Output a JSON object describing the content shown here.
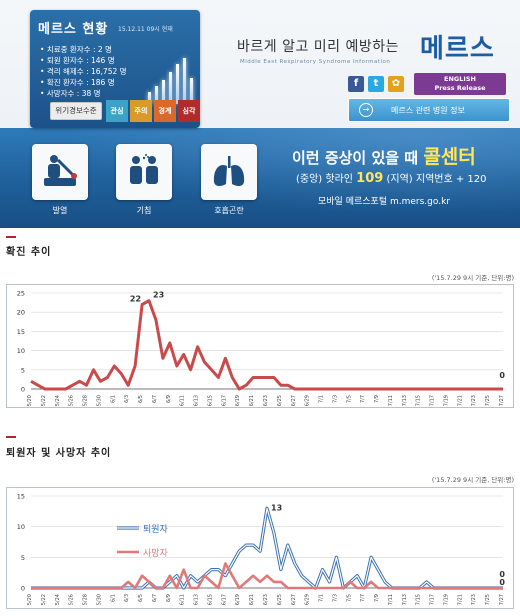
{
  "banner": {
    "status": {
      "title": "메르스 현황",
      "date": "15.12.11 09시 현재",
      "items": [
        "치료중 환자수 : 2 명",
        "퇴원 환자수 : 146 명",
        "격리 해제수 : 16,752 명",
        "확진 환자수 : 186 명",
        "사망자수 : 38 명"
      ]
    },
    "alert": {
      "label": "위기경보수준",
      "levels": [
        {
          "label": "관심",
          "color": "#3aa4c8"
        },
        {
          "label": "주의",
          "color": "#d99a2b"
        },
        {
          "label": "경계",
          "color": "#d96a2b"
        },
        {
          "label": "심각",
          "color": "#b02c2c"
        }
      ]
    },
    "slogan": "바르게 알고 미리 예방하는",
    "slogan_en": "Middle East Respiratory Syndrome Information",
    "logo": "메르스",
    "sns": [
      {
        "icon": "facebook-icon",
        "glyph": "f",
        "color": "#3b5998"
      },
      {
        "icon": "twitter-icon",
        "glyph": "t",
        "color": "#2aa9e0"
      },
      {
        "icon": "blog-icon",
        "glyph": "✿",
        "color": "#e3a21a"
      }
    ],
    "english_button": {
      "line1": "ENGLISH",
      "line2": "Press Release"
    },
    "hospital_button": {
      "icon_glyph": "→",
      "label": "메르스 관련 병원 정보"
    },
    "symptoms": [
      {
        "label": "발열",
        "icon": "thermometer-icon"
      },
      {
        "label": "기침",
        "icon": "cough-icon"
      },
      {
        "label": "호흡곤란",
        "icon": "lungs-icon"
      }
    ],
    "callcenter": {
      "prefix": "이런 증상이 있을 때",
      "highlight": "콜센터",
      "hotline_prefix": "(중앙) 핫라인",
      "hotline_number": "109",
      "hotline_suffix": "(지역) 지역번호 + 120",
      "portal_label": "모바일 메르스포털",
      "portal_url": "m.mers.go.kr"
    },
    "colors": {
      "brand_blue": "#1d5da4",
      "highlight": "#ffe65a"
    }
  },
  "sections": [
    {
      "title": "확진 추이",
      "note": "('15.7.29 9시 기준, 단위:명)"
    },
    {
      "title": "퇴원자 및 사망자 추이",
      "note": "('15.7.29 9시 기준, 단위:명)"
    }
  ],
  "chart_data": [
    {
      "type": "line",
      "title": "확진 추이",
      "x": [
        "5/20",
        "5/21",
        "5/22",
        "5/23",
        "5/24",
        "5/25",
        "5/26",
        "5/27",
        "5/28",
        "5/29",
        "5/30",
        "5/31",
        "6/1",
        "6/2",
        "6/3",
        "6/4",
        "6/5",
        "6/6",
        "6/7",
        "6/8",
        "6/9",
        "6/10",
        "6/11",
        "6/12",
        "6/13",
        "6/14",
        "6/15",
        "6/16",
        "6/17",
        "6/18",
        "6/19",
        "6/20",
        "6/21",
        "6/22",
        "6/23",
        "6/24",
        "6/25",
        "6/26",
        "6/27",
        "6/28",
        "6/29",
        "6/30",
        "7/1",
        "7/2",
        "7/3",
        "7/4",
        "7/5",
        "7/6",
        "7/7",
        "7/8",
        "7/9",
        "7/10",
        "7/11",
        "7/12",
        "7/13",
        "7/14",
        "7/15",
        "7/16",
        "7/17",
        "7/18",
        "7/19",
        "7/20",
        "7/21",
        "7/22",
        "7/23",
        "7/24",
        "7/25",
        "7/26",
        "7/27"
      ],
      "tick_labels": [
        "5/20",
        "5/22",
        "5/24",
        "5/26",
        "5/28",
        "5/30",
        "6/1",
        "6/3",
        "6/5",
        "6/7",
        "6/9",
        "6/11",
        "6/13",
        "6/15",
        "6/17",
        "6/19",
        "6/21",
        "6/23",
        "6/25",
        "6/27",
        "6/29",
        "7/1",
        "7/3",
        "7/5",
        "7/7",
        "7/9",
        "7/11",
        "7/13",
        "7/15",
        "7/17",
        "7/19",
        "7/21",
        "7/23",
        "7/25",
        "7/27"
      ],
      "series": [
        {
          "color": "#c94a4a",
          "values": [
            2,
            1,
            0,
            0,
            0,
            0,
            1,
            2,
            1,
            5,
            2,
            3,
            6,
            4,
            1,
            6,
            22,
            23,
            18,
            8,
            12,
            6,
            9,
            5,
            11,
            7,
            5,
            3,
            8,
            3,
            0,
            1,
            3,
            3,
            3,
            3,
            1,
            1,
            0,
            0,
            0,
            0,
            0,
            0,
            0,
            0,
            0,
            0,
            0,
            0,
            0,
            0,
            0,
            0,
            0,
            0,
            0,
            0,
            0,
            0,
            0,
            0,
            0,
            0,
            0,
            0,
            0,
            0,
            0
          ]
        }
      ],
      "data_labels": [
        {
          "x": "6/5",
          "text": "22"
        },
        {
          "x": "6/6",
          "text": "23"
        },
        {
          "x": "7/27",
          "text": "0"
        }
      ],
      "yticks": [
        0,
        5,
        10,
        15,
        20,
        25
      ],
      "ylim": [
        0,
        25
      ],
      "grid": true
    },
    {
      "type": "line",
      "title": "퇴원자 및 사망자 추이",
      "x": [
        "5/20",
        "5/21",
        "5/22",
        "5/23",
        "5/24",
        "5/25",
        "5/26",
        "5/27",
        "5/28",
        "5/29",
        "5/30",
        "5/31",
        "6/1",
        "6/2",
        "6/3",
        "6/4",
        "6/5",
        "6/6",
        "6/7",
        "6/8",
        "6/9",
        "6/10",
        "6/11",
        "6/12",
        "6/13",
        "6/14",
        "6/15",
        "6/16",
        "6/17",
        "6/18",
        "6/19",
        "6/20",
        "6/21",
        "6/22",
        "6/23",
        "6/24",
        "6/25",
        "6/26",
        "6/27",
        "6/28",
        "6/29",
        "6/30",
        "7/1",
        "7/2",
        "7/3",
        "7/4",
        "7/5",
        "7/6",
        "7/7",
        "7/8",
        "7/9",
        "7/10",
        "7/11",
        "7/12",
        "7/13",
        "7/14",
        "7/15",
        "7/16",
        "7/17",
        "7/18",
        "7/19",
        "7/20",
        "7/21",
        "7/22",
        "7/23",
        "7/24",
        "7/25",
        "7/26",
        "7/27"
      ],
      "tick_labels": [
        "5/20",
        "5/22",
        "5/24",
        "5/26",
        "5/28",
        "5/30",
        "6/1",
        "6/3",
        "6/5",
        "6/7",
        "6/9",
        "6/11",
        "6/13",
        "6/15",
        "6/17",
        "6/19",
        "6/21",
        "6/23",
        "6/25",
        "6/27",
        "6/29",
        "7/1",
        "7/3",
        "7/5",
        "7/7",
        "7/9",
        "7/11",
        "7/13",
        "7/15",
        "7/17",
        "7/19",
        "7/21",
        "7/23",
        "7/25",
        "7/27"
      ],
      "series": [
        {
          "name": "퇴원자",
          "color": "#3b72b4",
          "values": [
            0,
            0,
            0,
            0,
            0,
            0,
            0,
            0,
            0,
            0,
            0,
            0,
            0,
            0,
            0,
            0,
            0,
            1,
            0,
            0,
            1,
            2,
            0,
            2,
            1,
            2,
            3,
            3,
            2,
            4,
            6,
            7,
            7,
            6,
            13,
            9,
            3,
            7,
            4,
            2,
            1,
            0,
            3,
            1,
            5,
            0,
            1,
            2,
            0,
            5,
            3,
            1,
            0,
            0,
            0,
            0,
            0,
            1,
            0,
            0,
            0,
            0,
            0,
            0,
            0,
            0,
            0,
            0,
            0
          ]
        },
        {
          "name": "사망자",
          "color": "#e07a7a",
          "values": [
            0,
            0,
            0,
            0,
            0,
            0,
            0,
            0,
            0,
            0,
            0,
            0,
            0,
            0,
            1,
            0,
            2,
            1,
            0,
            0,
            2,
            0,
            3,
            0,
            0,
            2,
            1,
            0,
            4,
            2,
            0,
            1,
            2,
            1,
            2,
            1,
            1,
            0,
            0,
            0,
            0,
            0,
            0,
            0,
            0,
            0,
            1,
            0,
            0,
            1,
            0,
            0,
            0,
            0,
            0,
            0,
            0,
            0,
            0,
            0,
            0,
            0,
            0,
            0,
            0,
            0,
            0,
            0,
            0
          ]
        }
      ],
      "data_labels": [
        {
          "x": "6/23",
          "text": "13"
        },
        {
          "x": "7/27",
          "text": "0"
        },
        {
          "x": "7/27",
          "text": "0"
        }
      ],
      "yticks": [
        0,
        5,
        10,
        15
      ],
      "ylim": [
        0,
        15
      ],
      "legend": "left",
      "grid": true
    }
  ]
}
